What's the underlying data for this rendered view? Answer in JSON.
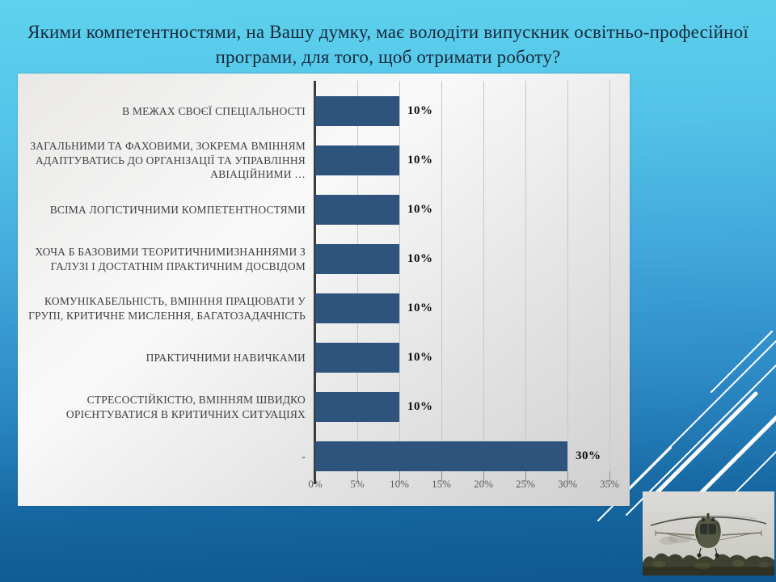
{
  "slide": {
    "title": "Якими компетентностями, на Вашу думку, має володіти випускник освітньо-професійної програми, для того, щоб отримати роботу?"
  },
  "chart_data": {
    "type": "bar",
    "orientation": "horizontal",
    "title": "",
    "xlabel": "",
    "ylabel": "",
    "categories": [
      "В МЕЖАХ СВОЄЇ СПЕЦІАЛЬНОСТІ",
      "ЗАГАЛЬНИМИ ТА ФАХОВИМИ, ЗОКРЕМА ВМІННЯМ АДАПТУВАТИСЬ ДО ОРГАНІЗАЦІЇ ТА УПРАВЛІННЯ АВІАЦІЙНИМИ …",
      "ВСІМА ЛОГІСТИЧНИМИ КОМПЕТЕНТНОСТЯМИ",
      "ХОЧА Б БАЗОВИМИ ТЕОРИТИЧНИМИЗНАННЯМИ  З ГАЛУЗІ І ДОСТАТНІМ ПРАКТИЧНИМ ДОСВІДОМ",
      "КОМУНІКАБЕЛЬНІСТЬ, ВМІНННЯ ПРАЦЮВАТИ У ГРУПІ, КРИТИЧНЕ МИСЛЕННЯ, БАГАТОЗАДАЧНІСТЬ",
      "ПРАКТИЧНИМИ НАВИЧКАМИ",
      "СТРЕСОСТІЙКІСТЮ, ВМІННЯМ ШВИДКО ОРІЄНТУВАТИСЯ В КРИТИЧНИХ СИТУАЦІЯХ",
      "-"
    ],
    "values": [
      10,
      10,
      10,
      10,
      10,
      10,
      10,
      30
    ],
    "value_labels": [
      "10%",
      "10%",
      "10%",
      "10%",
      "10%",
      "10%",
      "10%",
      "30%"
    ],
    "x_ticks": [
      "0%",
      "5%",
      "10%",
      "15%",
      "20%",
      "25%",
      "30%",
      "35%"
    ],
    "xlim": [
      0,
      35
    ],
    "grid": true,
    "legend": false,
    "bar_color": "#2e537d",
    "grid_color": "#c6c6c6",
    "axis_color": "#3b3b3b"
  },
  "decor": {
    "background_top_color": "#5ed2ee",
    "background_bottom_color": "#0e5890",
    "lines_color": "#ffffff",
    "helicopter_image_name": "helicopter-over-treeline-photo"
  }
}
